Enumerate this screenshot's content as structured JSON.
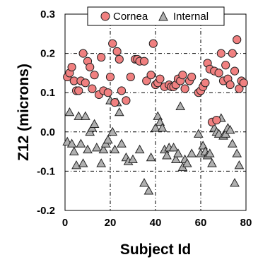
{
  "chart_data": {
    "type": "scatter",
    "xlabel": "Subject Id",
    "ylabel": "Z12 (microns)",
    "xlim": [
      0,
      80
    ],
    "ylim": [
      -0.2,
      0.3
    ],
    "xticks": [
      "0",
      "20",
      "40",
      "60",
      "80"
    ],
    "yticks": [
      "-0.2",
      "-0.1",
      "0.0",
      "0.1",
      "0.2",
      "0.3"
    ],
    "grid": true,
    "legend_position": "top",
    "series": [
      {
        "name": "Cornea",
        "marker": "circle",
        "color": "#f08080",
        "edge_color": "#222222",
        "points": [
          [
            1,
            0.14
          ],
          [
            2,
            0.15
          ],
          [
            3,
            0.165
          ],
          [
            4,
            0.13
          ],
          [
            5,
            0.105
          ],
          [
            6,
            0.105
          ],
          [
            7,
            0.13
          ],
          [
            8,
            0.2
          ],
          [
            9,
            0.125
          ],
          [
            10,
            0.18
          ],
          [
            11,
            0.165
          ],
          [
            12,
            0.11
          ],
          [
            13,
            0.145
          ],
          [
            15,
            0.095
          ],
          [
            16,
            0.19
          ],
          [
            17,
            0.105
          ],
          [
            19,
            0.1
          ],
          [
            20,
            0.14
          ],
          [
            21,
            0.225
          ],
          [
            22,
            0.075
          ],
          [
            23,
            0.205
          ],
          [
            24,
            0.185
          ],
          [
            25,
            0.105
          ],
          [
            27,
            0.08
          ],
          [
            29,
            0.14
          ],
          [
            31,
            0.185
          ],
          [
            32,
            0.185
          ],
          [
            33,
            0.18
          ],
          [
            35,
            0.18
          ],
          [
            36,
            0.13
          ],
          [
            38,
            0.145
          ],
          [
            39,
            0.225
          ],
          [
            40,
            0.12
          ],
          [
            41,
            0.125
          ],
          [
            42,
            0.135
          ],
          [
            44,
            0.115
          ],
          [
            46,
            0.12
          ],
          [
            47,
            0.115
          ],
          [
            48,
            0.115
          ],
          [
            49,
            0.12
          ],
          [
            50,
            0.135
          ],
          [
            51,
            0.13
          ],
          [
            52,
            0.145
          ],
          [
            53,
            0.11
          ],
          [
            55,
            0.13
          ],
          [
            56,
            0.14
          ],
          [
            59,
            0.1
          ],
          [
            60,
            0.105
          ],
          [
            61,
            0.115
          ],
          [
            62,
            0.125
          ],
          [
            63,
            0.175
          ],
          [
            64,
            0.16
          ],
          [
            65,
            0.025
          ],
          [
            66,
            0.155
          ],
          [
            67,
            0.03
          ],
          [
            68,
            0.15
          ],
          [
            69,
            0.2
          ],
          [
            70,
            0.13
          ],
          [
            71,
            0.17
          ],
          [
            72,
            0.135
          ],
          [
            73,
            0.12
          ],
          [
            74,
            0.2
          ],
          [
            75,
            0.155
          ],
          [
            76,
            0.235
          ],
          [
            77,
            0.11
          ],
          [
            78,
            0.13
          ],
          [
            79,
            0.125
          ]
        ]
      },
      {
        "name": "Internal",
        "marker": "triangle",
        "color": "#b0b0b0",
        "edge_color": "#222222",
        "points": [
          [
            1,
            -0.025
          ],
          [
            2,
            0.05
          ],
          [
            3,
            -0.03
          ],
          [
            4,
            -0.05
          ],
          [
            5,
            -0.085
          ],
          [
            6,
            0.04
          ],
          [
            7,
            -0.03
          ],
          [
            8,
            -0.08
          ],
          [
            9,
            0.04
          ],
          [
            10,
            -0.045
          ],
          [
            11,
            0.0
          ],
          [
            12,
            0.01
          ],
          [
            13,
            0.02
          ],
          [
            14,
            -0.04
          ],
          [
            16,
            -0.08
          ],
          [
            17,
            -0.045
          ],
          [
            18,
            -0.03
          ],
          [
            19,
            -0.02
          ],
          [
            20,
            0.08
          ],
          [
            21,
            0.0
          ],
          [
            22,
            -0.045
          ],
          [
            23,
            0.075
          ],
          [
            24,
            0.05
          ],
          [
            25,
            -0.03
          ],
          [
            27,
            -0.065
          ],
          [
            28,
            -0.075
          ],
          [
            30,
            -0.07
          ],
          [
            33,
            -0.045
          ],
          [
            35,
            -0.13
          ],
          [
            37,
            -0.15
          ],
          [
            38,
            -0.065
          ],
          [
            40,
            0.01
          ],
          [
            41,
            0.04
          ],
          [
            42,
            0.025
          ],
          [
            43,
            0.01
          ],
          [
            44,
            -0.045
          ],
          [
            45,
            -0.06
          ],
          [
            46,
            -0.04
          ],
          [
            48,
            -0.04
          ],
          [
            49,
            -0.07
          ],
          [
            50,
            -0.055
          ],
          [
            51,
            0.065
          ],
          [
            52,
            -0.09
          ],
          [
            53,
            -0.07
          ],
          [
            54,
            -0.08
          ],
          [
            56,
            -0.055
          ],
          [
            59,
            -0.005
          ],
          [
            60,
            -0.055
          ],
          [
            61,
            -0.035
          ],
          [
            62,
            -0.05
          ],
          [
            63,
            -0.06
          ],
          [
            64,
            -0.055
          ],
          [
            65,
            -0.08
          ],
          [
            66,
            0.01
          ],
          [
            67,
            0.0
          ],
          [
            68,
            -0.005
          ],
          [
            69,
            0.035
          ],
          [
            70,
            -0.01
          ],
          [
            71,
            -0.005
          ],
          [
            72,
            0.01
          ],
          [
            73,
            0.005
          ],
          [
            74,
            -0.03
          ],
          [
            75,
            -0.13
          ],
          [
            76,
            -0.055
          ],
          [
            77,
            -0.085
          ]
        ]
      }
    ]
  }
}
